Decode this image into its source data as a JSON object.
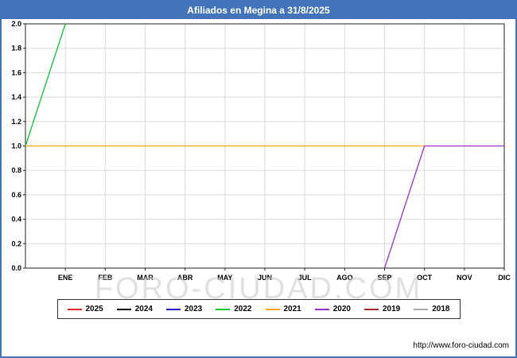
{
  "title": "Afiliados en Megina a 31/8/2025",
  "watermark": "FORO-CIUDAD.COM",
  "footer": {
    "url": "http://www.foro-ciudad.com"
  },
  "colors": {
    "title_bar": "#4373b8",
    "plot_border": "#222222",
    "grid": "#d9d9d9",
    "watermark": "#cccccc",
    "axis_text": "#000000"
  },
  "chart_data": {
    "type": "line",
    "title": "Afiliados en Megina a 31/8/2025",
    "x_categories": [
      "ENE",
      "FEB",
      "MAR",
      "ABR",
      "MAY",
      "JUN",
      "JUL",
      "AGO",
      "SEP",
      "OCT",
      "NOV",
      "DIC"
    ],
    "ylim": [
      0.0,
      2.0
    ],
    "ytick_step": 0.2,
    "grid": true,
    "legend_position": "bottom",
    "series": [
      {
        "name": "2025",
        "color": "#e02a2a",
        "points": []
      },
      {
        "name": "2024",
        "color": "#000000",
        "points": []
      },
      {
        "name": "2023",
        "color": "#2222cc",
        "points": []
      },
      {
        "name": "2022",
        "color": "#00cc33",
        "points": [
          [
            0,
            1.0
          ],
          [
            1,
            2.0
          ]
        ]
      },
      {
        "name": "2021",
        "color": "#ffa500",
        "points": [
          [
            0,
            1.0
          ],
          [
            10,
            1.0
          ]
        ]
      },
      {
        "name": "2020",
        "color": "#9932cc",
        "points": [
          [
            9,
            0.0
          ],
          [
            10,
            1.0
          ],
          [
            12,
            1.0
          ]
        ]
      },
      {
        "name": "2019",
        "color": "#a52a2a",
        "points": []
      },
      {
        "name": "2018",
        "color": "#aaaaaa",
        "points": []
      }
    ]
  }
}
